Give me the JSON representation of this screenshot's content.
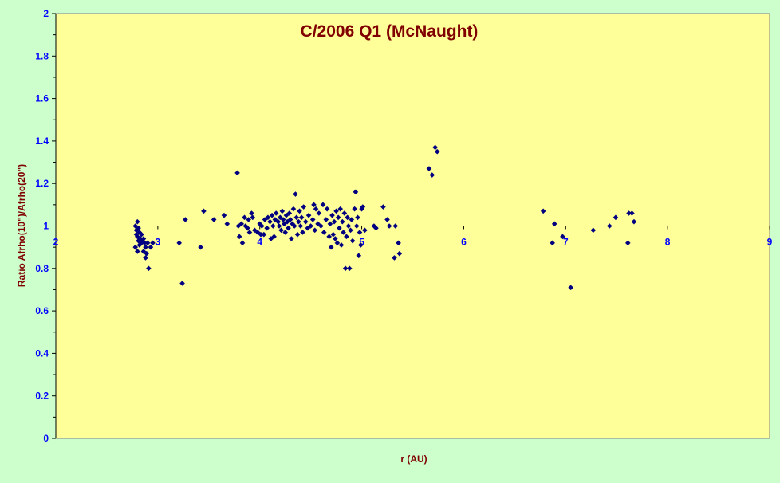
{
  "chart_data": {
    "type": "scatter",
    "title": "C/2006 Q1 (McNaught)",
    "xlabel": "r (AU)",
    "ylabel": "Ratio Afrho(10\")/Afrho(20\")",
    "xlim": [
      2,
      9
    ],
    "ylim": [
      0,
      2
    ],
    "xticks": [
      "2",
      "3",
      "4",
      "5",
      "6",
      "7",
      "8",
      "9"
    ],
    "yticks": [
      "0",
      "0.2",
      "0.4",
      "0.6",
      "0.8",
      "1",
      "1.2",
      "1.4",
      "1.6",
      "1.8",
      "2"
    ],
    "reference_line_y": 1,
    "grid": false,
    "legend": "none",
    "colors": {
      "background": "#ccffcc",
      "plot_area": "#ffff99",
      "markers": "#000080",
      "title": "#800000",
      "axis_labels": "#800000",
      "tick_labels": "#0000ff"
    },
    "series": [
      {
        "marker": "diamond",
        "points": [
          [
            2.78,
            1.0
          ],
          [
            2.79,
            0.98
          ],
          [
            2.79,
            0.96
          ],
          [
            2.8,
            1.02
          ],
          [
            2.8,
            0.95
          ],
          [
            2.81,
            0.99
          ],
          [
            2.81,
            0.93
          ],
          [
            2.82,
            0.97
          ],
          [
            2.82,
            0.91
          ],
          [
            2.83,
            0.94
          ],
          [
            2.78,
            0.9
          ],
          [
            2.84,
            0.96
          ],
          [
            2.84,
            0.92
          ],
          [
            2.85,
            0.93
          ],
          [
            2.86,
            0.88
          ],
          [
            2.86,
            0.94
          ],
          [
            2.87,
            0.92
          ],
          [
            2.88,
            0.85
          ],
          [
            2.88,
            0.9
          ],
          [
            2.89,
            0.87
          ],
          [
            2.9,
            0.92
          ],
          [
            2.91,
            0.8
          ],
          [
            2.93,
            0.9
          ],
          [
            2.95,
            0.92
          ],
          [
            2.8,
            0.88
          ],
          [
            3.21,
            0.92
          ],
          [
            3.24,
            0.73
          ],
          [
            3.27,
            1.03
          ],
          [
            3.42,
            0.9
          ],
          [
            3.45,
            1.07
          ],
          [
            3.55,
            1.03
          ],
          [
            3.65,
            1.05
          ],
          [
            3.68,
            1.01
          ],
          [
            3.78,
            1.25
          ],
          [
            3.79,
            1.0
          ],
          [
            3.8,
            0.95
          ],
          [
            3.82,
            1.01
          ],
          [
            3.83,
            0.92
          ],
          [
            3.85,
            1.04
          ],
          [
            3.86,
            1.0
          ],
          [
            3.88,
            0.99
          ],
          [
            3.89,
            1.03
          ],
          [
            3.9,
            0.97
          ],
          [
            3.92,
            1.06
          ],
          [
            3.93,
            1.04
          ],
          [
            3.95,
            0.98
          ],
          [
            3.98,
            0.97
          ],
          [
            4.0,
            1.01
          ],
          [
            4.01,
            0.96
          ],
          [
            4.02,
            1.0
          ],
          [
            4.04,
            0.96
          ],
          [
            4.05,
            1.03
          ],
          [
            4.07,
            0.99
          ],
          [
            4.08,
            1.04
          ],
          [
            4.1,
            1.02
          ],
          [
            4.11,
            0.94
          ],
          [
            4.12,
            1.05
          ],
          [
            4.13,
            1.0
          ],
          [
            4.14,
            0.95
          ],
          [
            4.15,
            1.03
          ],
          [
            4.16,
            1.06
          ],
          [
            4.18,
            1.02
          ],
          [
            4.19,
            1.0
          ],
          [
            4.2,
            1.04
          ],
          [
            4.21,
            0.98
          ],
          [
            4.22,
            1.07
          ],
          [
            4.23,
            1.03
          ],
          [
            4.24,
            1.01
          ],
          [
            4.25,
            0.97
          ],
          [
            4.26,
            1.05
          ],
          [
            4.27,
            1.02
          ],
          [
            4.28,
            0.99
          ],
          [
            4.29,
            1.06
          ],
          [
            4.3,
            1.03
          ],
          [
            4.31,
            0.94
          ],
          [
            4.32,
            1.01
          ],
          [
            4.33,
            1.08
          ],
          [
            4.34,
            1.0
          ],
          [
            4.35,
            1.15
          ],
          [
            4.36,
            1.04
          ],
          [
            4.37,
            0.96
          ],
          [
            4.38,
            1.02
          ],
          [
            4.39,
            1.07
          ],
          [
            4.4,
            1.0
          ],
          [
            4.41,
            1.04
          ],
          [
            4.42,
            0.97
          ],
          [
            4.43,
            1.09
          ],
          [
            4.45,
            1.02
          ],
          [
            4.47,
            0.99
          ],
          [
            4.48,
            1.05
          ],
          [
            4.5,
            1.0
          ],
          [
            4.52,
            1.03
          ],
          [
            4.53,
            1.1
          ],
          [
            4.54,
            0.98
          ],
          [
            4.55,
            1.08
          ],
          [
            4.57,
            1.01
          ],
          [
            4.58,
            1.06
          ],
          [
            4.6,
            1.0
          ],
          [
            4.62,
            1.1
          ],
          [
            4.63,
            0.97
          ],
          [
            4.65,
            1.03
          ],
          [
            4.66,
            1.08
          ],
          [
            4.68,
            0.95
          ],
          [
            4.69,
            1.01
          ],
          [
            4.7,
            0.9
          ],
          [
            4.71,
            1.05
          ],
          [
            4.72,
            0.96
          ],
          [
            4.73,
            1.02
          ],
          [
            4.74,
            0.94
          ],
          [
            4.75,
            1.07
          ],
          [
            4.76,
            0.92
          ],
          [
            4.77,
            1.04
          ],
          [
            4.78,
            0.99
          ],
          [
            4.79,
            1.08
          ],
          [
            4.8,
            0.91
          ],
          [
            4.81,
            1.02
          ],
          [
            4.82,
            0.97
          ],
          [
            4.83,
            1.06
          ],
          [
            4.84,
            0.8
          ],
          [
            4.85,
            0.95
          ],
          [
            4.86,
            1.04
          ],
          [
            4.87,
            1.0
          ],
          [
            4.88,
            0.8
          ],
          [
            4.89,
            0.98
          ],
          [
            4.9,
            1.03
          ],
          [
            4.91,
            0.93
          ],
          [
            4.93,
            1.08
          ],
          [
            4.94,
            1.16
          ],
          [
            4.95,
            1.0
          ],
          [
            4.96,
            1.04
          ],
          [
            4.97,
            0.86
          ],
          [
            4.98,
            0.97
          ],
          [
            4.99,
            0.91
          ],
          [
            5.0,
            1.08
          ],
          [
            5.01,
            1.09
          ],
          [
            5.03,
            0.98
          ],
          [
            5.12,
            1.0
          ],
          [
            5.14,
            0.99
          ],
          [
            5.21,
            1.09
          ],
          [
            5.25,
            1.03
          ],
          [
            5.27,
            1.0
          ],
          [
            5.32,
            0.85
          ],
          [
            5.33,
            1.0
          ],
          [
            5.36,
            0.92
          ],
          [
            5.37,
            0.87
          ],
          [
            5.66,
            1.27
          ],
          [
            5.69,
            1.24
          ],
          [
            5.72,
            1.37
          ],
          [
            5.74,
            1.35
          ],
          [
            6.78,
            1.07
          ],
          [
            6.87,
            0.92
          ],
          [
            6.89,
            1.01
          ],
          [
            6.97,
            0.95
          ],
          [
            7.05,
            0.71
          ],
          [
            7.27,
            0.98
          ],
          [
            7.43,
            1.0
          ],
          [
            7.49,
            1.04
          ],
          [
            7.61,
            0.92
          ],
          [
            7.62,
            1.06
          ],
          [
            7.65,
            1.06
          ],
          [
            7.67,
            1.02
          ]
        ]
      }
    ]
  }
}
